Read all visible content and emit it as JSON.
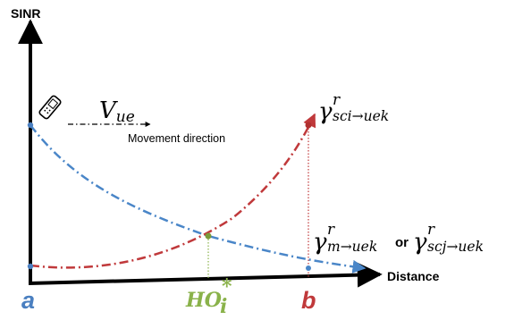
{
  "axes": {
    "y_label": "SINR",
    "x_label": "Distance"
  },
  "velocity": {
    "symbol": "V",
    "subscript": "ue",
    "caption": "Movement direction"
  },
  "gamma_sci": {
    "symbol": "γ",
    "superscript": "r",
    "subscript": "sci→uek"
  },
  "gamma_m": {
    "symbol": "γ",
    "superscript": "r",
    "subscript": "m→uek"
  },
  "or_text": "or",
  "gamma_scj": {
    "symbol": "γ",
    "superscript": "r",
    "subscript": "scj→uek"
  },
  "points": {
    "a": "a",
    "b": "b",
    "ho_main": "HO",
    "ho_sub": "i",
    "ho_sup": "*"
  },
  "colors": {
    "axis": "#000000",
    "blue": "#4a86c8",
    "red": "#c0393b",
    "green": "#8ab24a",
    "pt_a": "#4a7fc0",
    "pt_b": "#c0393b"
  },
  "icons": {
    "phone": "mobile-phone-icon"
  }
}
